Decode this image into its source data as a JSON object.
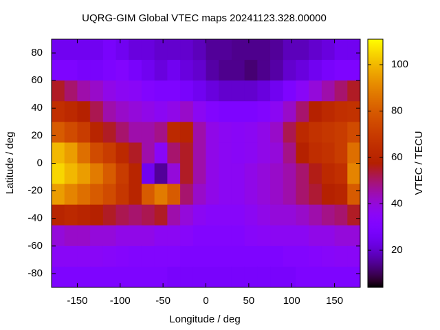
{
  "chart_data": {
    "type": "heatmap",
    "title": "UQRG-GIM Global VTEC maps 20241123.328.00000",
    "xlabel": "Longitude / deg",
    "ylabel": "Latitude / deg",
    "colorbar_label": "VTEC / TECU",
    "x": [
      -172.5,
      -157.5,
      -142.5,
      -127.5,
      -112.5,
      -97.5,
      -82.5,
      -67.5,
      -52.5,
      -37.5,
      -22.5,
      -7.5,
      7.5,
      22.5,
      37.5,
      52.5,
      67.5,
      82.5,
      97.5,
      112.5,
      127.5,
      142.5,
      157.5,
      172.5
    ],
    "y": [
      82.5,
      67.5,
      52.5,
      37.5,
      22.5,
      7.5,
      -7.5,
      -22.5,
      -37.5,
      -52.5,
      -67.5,
      -82.5
    ],
    "z": [
      [
        25,
        25,
        25,
        25,
        28,
        25,
        22,
        22,
        20,
        20,
        20,
        18,
        15,
        15,
        14,
        14,
        14,
        15,
        18,
        18,
        20,
        22,
        25,
        25
      ],
      [
        30,
        30,
        28,
        28,
        30,
        32,
        28,
        25,
        22,
        25,
        22,
        20,
        16,
        14,
        14,
        12,
        14,
        16,
        20,
        22,
        25,
        28,
        30,
        30
      ],
      [
        55,
        50,
        45,
        42,
        38,
        36,
        35,
        32,
        30,
        30,
        28,
        25,
        22,
        20,
        20,
        20,
        22,
        25,
        30,
        35,
        40,
        45,
        50,
        55
      ],
      [
        65,
        62,
        58,
        52,
        45,
        42,
        40,
        38,
        36,
        38,
        42,
        36,
        32,
        30,
        30,
        30,
        32,
        36,
        42,
        50,
        58,
        62,
        65,
        66
      ],
      [
        80,
        75,
        70,
        60,
        55,
        50,
        45,
        45,
        48,
        62,
        60,
        45,
        38,
        36,
        35,
        36,
        38,
        42,
        52,
        62,
        66,
        68,
        70,
        75
      ],
      [
        100,
        95,
        85,
        75,
        70,
        62,
        55,
        45,
        35,
        50,
        55,
        45,
        38,
        36,
        35,
        36,
        38,
        40,
        48,
        58,
        64,
        66,
        70,
        85
      ],
      [
        105,
        100,
        95,
        88,
        80,
        70,
        60,
        25,
        15,
        40,
        55,
        45,
        38,
        36,
        36,
        38,
        40,
        42,
        45,
        50,
        56,
        62,
        65,
        90
      ],
      [
        95,
        90,
        85,
        80,
        75,
        68,
        60,
        80,
        88,
        80,
        50,
        42,
        38,
        36,
        36,
        38,
        40,
        42,
        45,
        50,
        54,
        58,
        60,
        80
      ],
      [
        60,
        62,
        60,
        58,
        55,
        52,
        50,
        52,
        55,
        45,
        40,
        36,
        34,
        34,
        34,
        36,
        38,
        40,
        40,
        42,
        45,
        48,
        50,
        55
      ],
      [
        40,
        42,
        42,
        40,
        40,
        38,
        38,
        38,
        36,
        36,
        34,
        32,
        32,
        32,
        32,
        34,
        35,
        36,
        36,
        36,
        38,
        38,
        40,
        40
      ],
      [
        35,
        35,
        35,
        35,
        34,
        33,
        32,
        32,
        32,
        32,
        30,
        30,
        30,
        30,
        30,
        30,
        30,
        30,
        32,
        32,
        33,
        34,
        35,
        35
      ],
      [
        30,
        30,
        30,
        30,
        30,
        30,
        30,
        30,
        30,
        28,
        28,
        28,
        28,
        28,
        28,
        28,
        28,
        28,
        28,
        30,
        30,
        30,
        30,
        30
      ]
    ],
    "xlim": [
      -180,
      180
    ],
    "ylim": [
      -90,
      90
    ],
    "zlim": [
      4,
      111
    ],
    "xticks": [
      -150,
      -100,
      -50,
      0,
      50,
      100,
      150
    ],
    "yticks": [
      -80,
      -60,
      -40,
      -20,
      0,
      20,
      40,
      60,
      80
    ],
    "zticks": [
      20,
      40,
      60,
      80,
      100
    ]
  }
}
